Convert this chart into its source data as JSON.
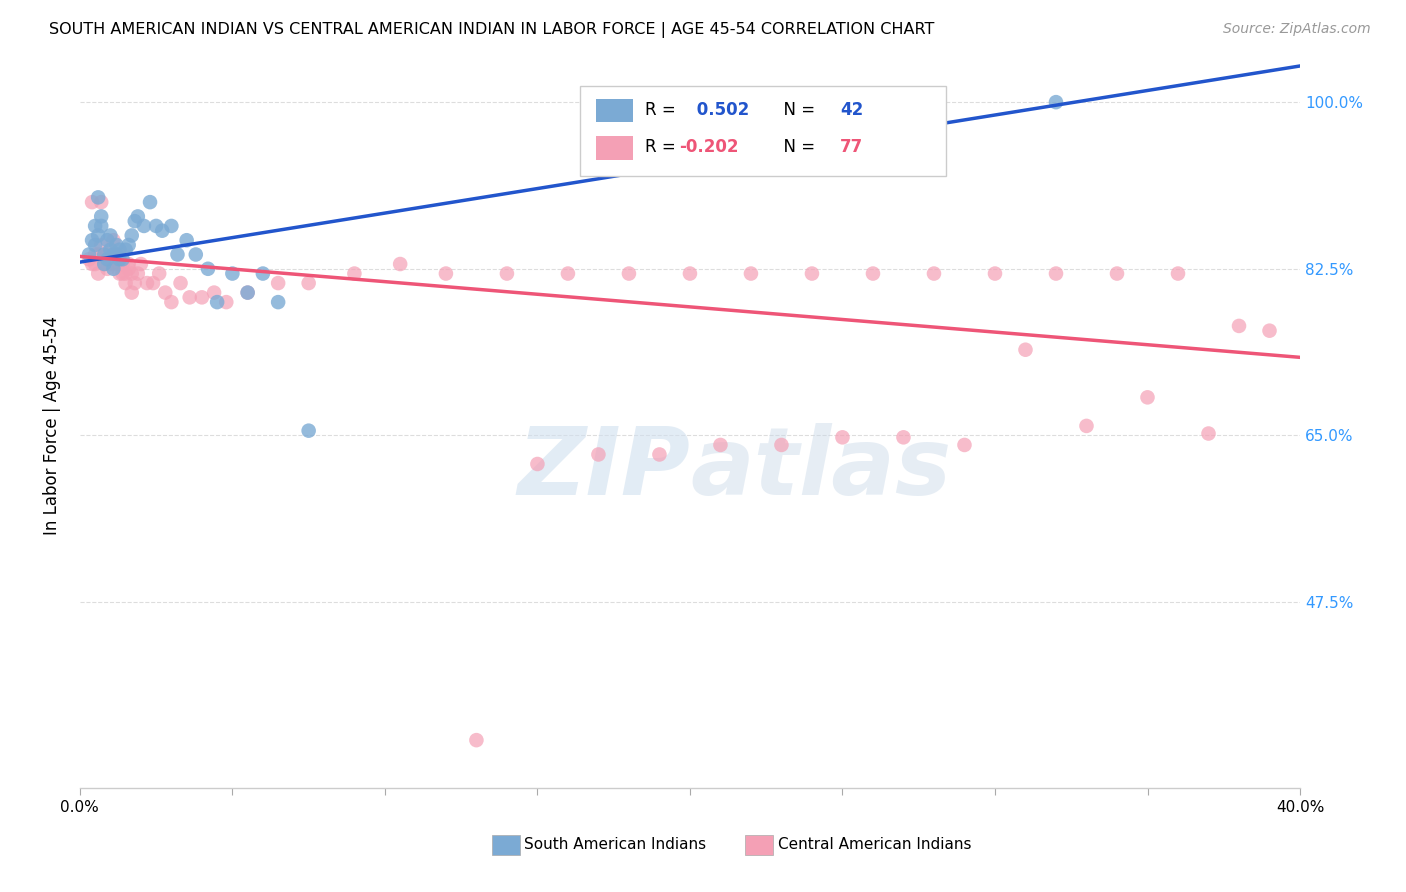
{
  "title": "SOUTH AMERICAN INDIAN VS CENTRAL AMERICAN INDIAN IN LABOR FORCE | AGE 45-54 CORRELATION CHART",
  "source": "Source: ZipAtlas.com",
  "ylabel": "In Labor Force | Age 45-54",
  "xlim": [
    0.0,
    0.4
  ],
  "ylim": [
    0.28,
    1.04
  ],
  "yticks": [
    0.475,
    0.65,
    0.825,
    1.0
  ],
  "ytick_labels": [
    "47.5%",
    "65.0%",
    "82.5%",
    "100.0%"
  ],
  "xticks": [
    0.0,
    0.05,
    0.1,
    0.15,
    0.2,
    0.25,
    0.3,
    0.35,
    0.4
  ],
  "xtick_labels": [
    "0.0%",
    "",
    "",
    "",
    "",
    "",
    "",
    "",
    "40.0%"
  ],
  "blue_R": 0.502,
  "blue_N": 42,
  "pink_R": -0.202,
  "pink_N": 77,
  "blue_color": "#7BAAD4",
  "pink_color": "#F4A0B5",
  "blue_line_color": "#2255CC",
  "pink_line_color": "#EE5577",
  "watermark_zip": "ZIP",
  "watermark_atlas": "atlas",
  "legend_label_blue": "South American Indians",
  "legend_label_pink": "Central American Indians",
  "blue_x": [
    0.003,
    0.004,
    0.005,
    0.005,
    0.006,
    0.006,
    0.007,
    0.007,
    0.008,
    0.008,
    0.009,
    0.009,
    0.01,
    0.01,
    0.011,
    0.011,
    0.012,
    0.012,
    0.013,
    0.013,
    0.014,
    0.015,
    0.016,
    0.017,
    0.018,
    0.019,
    0.021,
    0.023,
    0.025,
    0.027,
    0.03,
    0.032,
    0.035,
    0.038,
    0.042,
    0.045,
    0.05,
    0.055,
    0.06,
    0.065,
    0.075,
    0.32
  ],
  "blue_y": [
    0.84,
    0.855,
    0.85,
    0.87,
    0.9,
    0.86,
    0.88,
    0.87,
    0.84,
    0.83,
    0.835,
    0.855,
    0.845,
    0.86,
    0.84,
    0.825,
    0.85,
    0.84,
    0.845,
    0.835,
    0.835,
    0.845,
    0.85,
    0.86,
    0.875,
    0.88,
    0.87,
    0.895,
    0.87,
    0.865,
    0.87,
    0.84,
    0.855,
    0.84,
    0.825,
    0.79,
    0.82,
    0.8,
    0.82,
    0.79,
    0.655,
    1.0
  ],
  "pink_x": [
    0.003,
    0.004,
    0.004,
    0.005,
    0.005,
    0.006,
    0.006,
    0.007,
    0.007,
    0.008,
    0.008,
    0.009,
    0.009,
    0.01,
    0.01,
    0.011,
    0.011,
    0.011,
    0.012,
    0.012,
    0.013,
    0.013,
    0.013,
    0.014,
    0.014,
    0.015,
    0.015,
    0.016,
    0.016,
    0.017,
    0.017,
    0.018,
    0.019,
    0.02,
    0.022,
    0.024,
    0.026,
    0.028,
    0.03,
    0.033,
    0.036,
    0.04,
    0.044,
    0.048,
    0.055,
    0.065,
    0.075,
    0.09,
    0.105,
    0.12,
    0.14,
    0.16,
    0.18,
    0.2,
    0.22,
    0.24,
    0.26,
    0.28,
    0.3,
    0.32,
    0.34,
    0.36,
    0.38,
    0.13,
    0.15,
    0.17,
    0.19,
    0.21,
    0.23,
    0.25,
    0.27,
    0.29,
    0.31,
    0.33,
    0.35,
    0.37,
    0.39
  ],
  "pink_y": [
    0.835,
    0.83,
    0.895,
    0.84,
    0.83,
    0.84,
    0.82,
    0.85,
    0.895,
    0.84,
    0.83,
    0.84,
    0.825,
    0.84,
    0.83,
    0.84,
    0.835,
    0.855,
    0.84,
    0.83,
    0.84,
    0.82,
    0.83,
    0.83,
    0.82,
    0.82,
    0.81,
    0.83,
    0.825,
    0.82,
    0.8,
    0.81,
    0.82,
    0.83,
    0.81,
    0.81,
    0.82,
    0.8,
    0.79,
    0.81,
    0.795,
    0.795,
    0.8,
    0.79,
    0.8,
    0.81,
    0.81,
    0.82,
    0.83,
    0.82,
    0.82,
    0.82,
    0.82,
    0.82,
    0.82,
    0.82,
    0.82,
    0.82,
    0.82,
    0.82,
    0.82,
    0.82,
    0.765,
    0.33,
    0.62,
    0.63,
    0.63,
    0.64,
    0.64,
    0.648,
    0.648,
    0.64,
    0.74,
    0.66,
    0.69,
    0.652,
    0.76
  ]
}
